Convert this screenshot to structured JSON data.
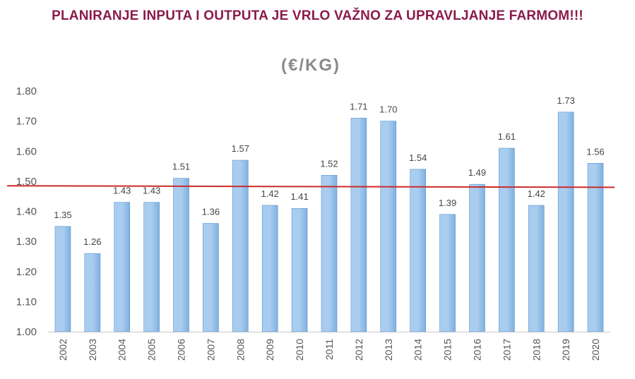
{
  "header": {
    "banner": "PLANIRANJE INPUTA I OUTPUTA JE VRLO VAŽNO ZA UPRAVLJANJE FARMOM!!!"
  },
  "chart_data": {
    "type": "bar",
    "title": "(€/KG)",
    "xlabel": "",
    "ylabel": "",
    "categories": [
      "2002",
      "2003",
      "2004",
      "2005",
      "2006",
      "2007",
      "2008",
      "2009",
      "2010",
      "2011",
      "2012",
      "2013",
      "2014",
      "2015",
      "2016",
      "2017",
      "2018",
      "2019",
      "2020"
    ],
    "values": [
      1.35,
      1.26,
      1.43,
      1.43,
      1.51,
      1.36,
      1.57,
      1.42,
      1.41,
      1.52,
      1.71,
      1.7,
      1.54,
      1.39,
      1.49,
      1.61,
      1.42,
      1.73,
      1.56
    ],
    "data_labels": [
      "1.35",
      "1.26",
      "1.43",
      "1.43",
      "1.51",
      "1.36",
      "1.57",
      "1.42",
      "1.41",
      "1.52",
      "1.71",
      "1.70",
      "1.54",
      "1.39",
      "1.49",
      "1.61",
      "1.42",
      "1.73",
      "1.56"
    ],
    "ylim": [
      1.0,
      1.8
    ],
    "yticks": [
      "1.00",
      "1.10",
      "1.20",
      "1.30",
      "1.40",
      "1.50",
      "1.60",
      "1.70",
      "1.80"
    ],
    "grid": false,
    "legend": "none",
    "reference_line": {
      "start_value": 1.485,
      "end_value": 1.48,
      "color": "#cc2b2b"
    },
    "colors": {
      "bar_top": "#a9cdef",
      "bar_bottom": "#7fb0e0",
      "bar_edge": "#5b93cf",
      "banner": "#8b1a4a",
      "title": "#8a8a8a"
    }
  }
}
